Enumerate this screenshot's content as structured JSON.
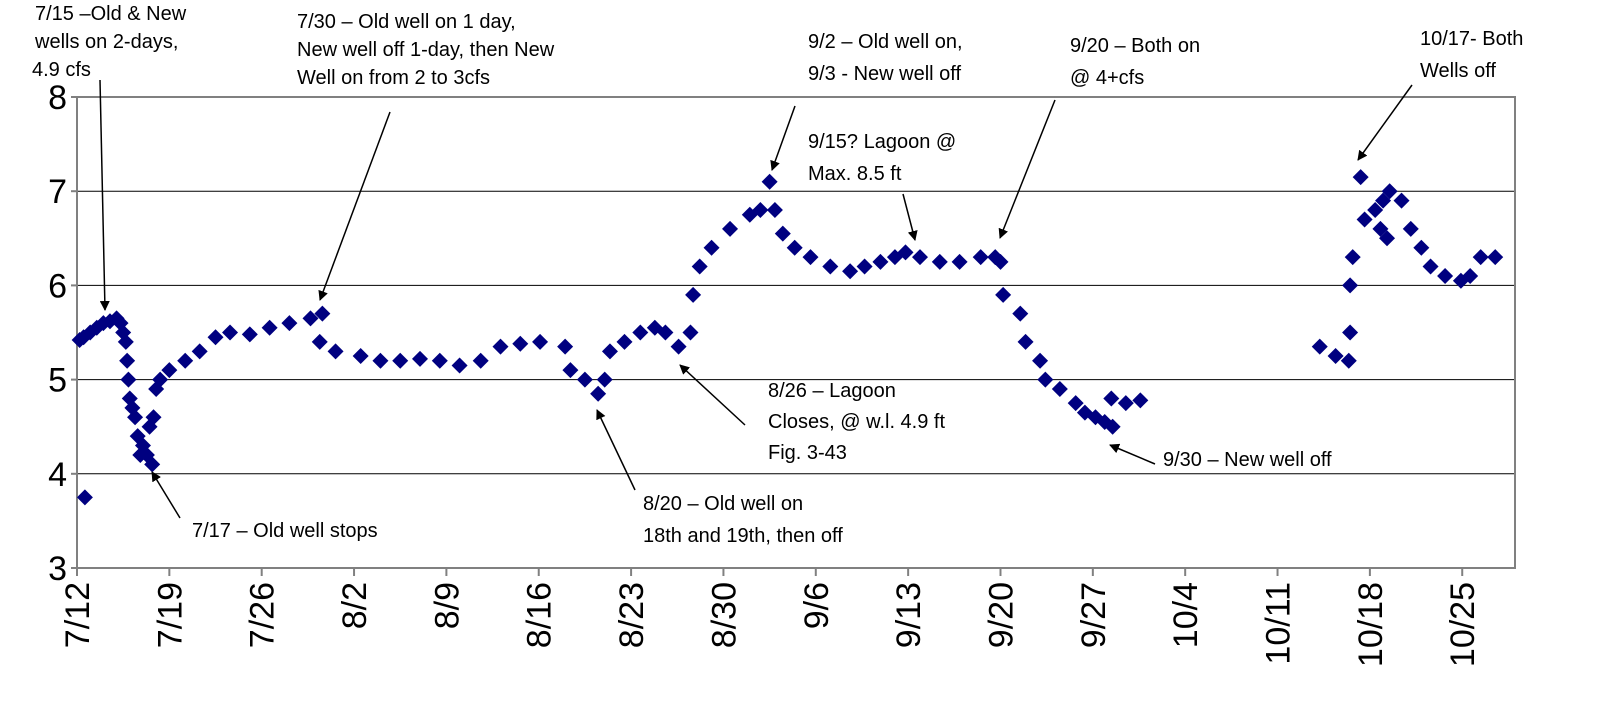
{
  "chart_data": {
    "type": "scatter",
    "color": "#000080",
    "grid": true,
    "xlim": [
      0,
      109
    ],
    "xticks": [
      {
        "value": 0,
        "label": "7/12"
      },
      {
        "value": 7,
        "label": "7/19"
      },
      {
        "value": 14,
        "label": "7/26"
      },
      {
        "value": 21,
        "label": "8/2"
      },
      {
        "value": 28,
        "label": "8/9"
      },
      {
        "value": 35,
        "label": "8/16"
      },
      {
        "value": 42,
        "label": "8/23"
      },
      {
        "value": 49,
        "label": "8/30"
      },
      {
        "value": 56,
        "label": "9/6"
      },
      {
        "value": 63,
        "label": "9/13"
      },
      {
        "value": 70,
        "label": "9/20"
      },
      {
        "value": 77,
        "label": "9/27"
      },
      {
        "value": 84,
        "label": "10/4"
      },
      {
        "value": 91,
        "label": "10/11"
      },
      {
        "value": 98,
        "label": "10/18"
      },
      {
        "value": 105,
        "label": "10/25"
      }
    ],
    "ylim": [
      3,
      8
    ],
    "yticks": [
      3,
      4,
      5,
      6,
      7,
      8
    ],
    "x": [
      0.6,
      0.2,
      0.5,
      1,
      1.5,
      2,
      2.5,
      3,
      3.3,
      3.5,
      3.7,
      3.8,
      3.9,
      4.0,
      4.2,
      4.4,
      4.6,
      4.8,
      5.0,
      5.3,
      5.7,
      5.5,
      5.8,
      6.0,
      6.3,
      7,
      8.2,
      9.3,
      10.5,
      11.6,
      13.1,
      14.6,
      16.1,
      17.7,
      18.6,
      18.4,
      19.6,
      21.5,
      23,
      24.5,
      26,
      27.5,
      29,
      30.6,
      32.1,
      33.6,
      35.1,
      37,
      37.4,
      38.5,
      39.5,
      40,
      40.4,
      41.5,
      42.7,
      43.8,
      44.6,
      45.6,
      46.5,
      46.7,
      47.2,
      48.1,
      49.5,
      51,
      51.8,
      52.5,
      52.9,
      53.5,
      54.4,
      55.6,
      57.1,
      58.6,
      59.7,
      60.9,
      62,
      62.8,
      63.9,
      65.4,
      66.9,
      68.5,
      69.6,
      70,
      70.2,
      71.5,
      71.9,
      73,
      73.4,
      74.5,
      75.7,
      76.4,
      77.2,
      77.9,
      78.5,
      78.4,
      79.5,
      80.6,
      94.2,
      95.4,
      96.4,
      96.5,
      96.5,
      96.7,
      97.3,
      97.6,
      98.4,
      98.8,
      99,
      99.3,
      99.5,
      100.4,
      101.1,
      101.9,
      102.6,
      103.7,
      104.9,
      105.6,
      106.4,
      107.5
    ],
    "values": [
      3.75,
      5.42,
      5.45,
      5.5,
      5.55,
      5.6,
      5.62,
      5.65,
      5.6,
      5.5,
      5.4,
      5.2,
      5.0,
      4.8,
      4.7,
      4.6,
      4.4,
      4.2,
      4.3,
      4.2,
      4.1,
      4.5,
      4.6,
      4.9,
      5.0,
      5.1,
      5.2,
      5.3,
      5.45,
      5.5,
      5.48,
      5.55,
      5.6,
      5.65,
      5.7,
      5.4,
      5.3,
      5.25,
      5.2,
      5.2,
      5.22,
      5.2,
      5.15,
      5.2,
      5.35,
      5.38,
      5.4,
      5.35,
      5.1,
      5.0,
      4.85,
      5.0,
      5.3,
      5.4,
      5.5,
      5.55,
      5.5,
      5.35,
      5.5,
      5.9,
      6.2,
      6.4,
      6.6,
      6.75,
      6.8,
      7.1,
      6.8,
      6.55,
      6.4,
      6.3,
      6.2,
      6.15,
      6.2,
      6.25,
      6.3,
      6.35,
      6.3,
      6.25,
      6.25,
      6.3,
      6.3,
      6.25,
      5.9,
      5.7,
      5.4,
      5.2,
      5.0,
      4.9,
      4.75,
      4.65,
      4.6,
      4.55,
      4.5,
      4.8,
      4.75,
      4.78,
      5.35,
      5.25,
      5.2,
      5.5,
      6.0,
      6.3,
      7.15,
      6.7,
      6.8,
      6.6,
      6.9,
      6.5,
      7.0,
      6.9,
      6.6,
      6.4,
      6.2,
      6.1,
      6.05,
      6.1,
      6.3,
      6.3
    ],
    "annotations": [
      [
        "7/15 –Old & New",
        "wells on 2-days,",
        "4.9 cfs"
      ],
      [
        "7/30 – Old well on 1 day,",
        "New well off 1-day, then New",
        "Well on from 2 to 3cfs"
      ],
      [
        "7/17 – Old well stops"
      ],
      [
        "8/20 – Old well on",
        "18th and 19th, then off"
      ],
      [
        "8/26 – Lagoon",
        "Closes, @ w.l. 4.9 ft",
        "Fig. 3-43"
      ],
      [
        "9/2 – Old well on,",
        "9/3 - New well off"
      ],
      [
        "9/15? Lagoon @",
        "Max. 8.5 ft"
      ],
      [
        "9/20 – Both on",
        "@ 4+cfs"
      ],
      [
        "9/30 – New well off"
      ],
      [
        "10/17- Both",
        "Wells off"
      ]
    ]
  }
}
